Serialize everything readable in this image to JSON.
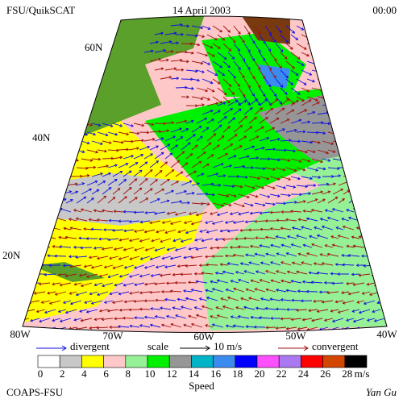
{
  "header": {
    "source": "FSU/QuikSCAT",
    "date": "14 April 2003",
    "time": "00:00"
  },
  "map": {
    "lat_labels": [
      "60N",
      "40N",
      "20N"
    ],
    "lon_labels": [
      "80W",
      "70W",
      "60W",
      "50W",
      "40W"
    ]
  },
  "legend": {
    "divergent": "divergent",
    "scale": "scale",
    "scale_value": "10 m/s",
    "convergent": "convergent",
    "divergent_color": "#1010e0",
    "convergent_color": "#a01010"
  },
  "colorbar": {
    "ticks": [
      0,
      2,
      4,
      6,
      8,
      10,
      12,
      14,
      16,
      18,
      20,
      22,
      24,
      26,
      28
    ],
    "colors": [
      "#ffffff",
      "#c8c8c8",
      "#ffff00",
      "#ffc8c8",
      "#96f096",
      "#00f000",
      "#969696",
      "#00b4c8",
      "#3c8cf0",
      "#0000ff",
      "#ff50ff",
      "#aa78f0",
      "#ff0000",
      "#d24600",
      "#000000"
    ],
    "unit": "m/s",
    "label": "Speed"
  },
  "footer": {
    "left": "COAPS-FSU",
    "right": "Yan Gu"
  }
}
